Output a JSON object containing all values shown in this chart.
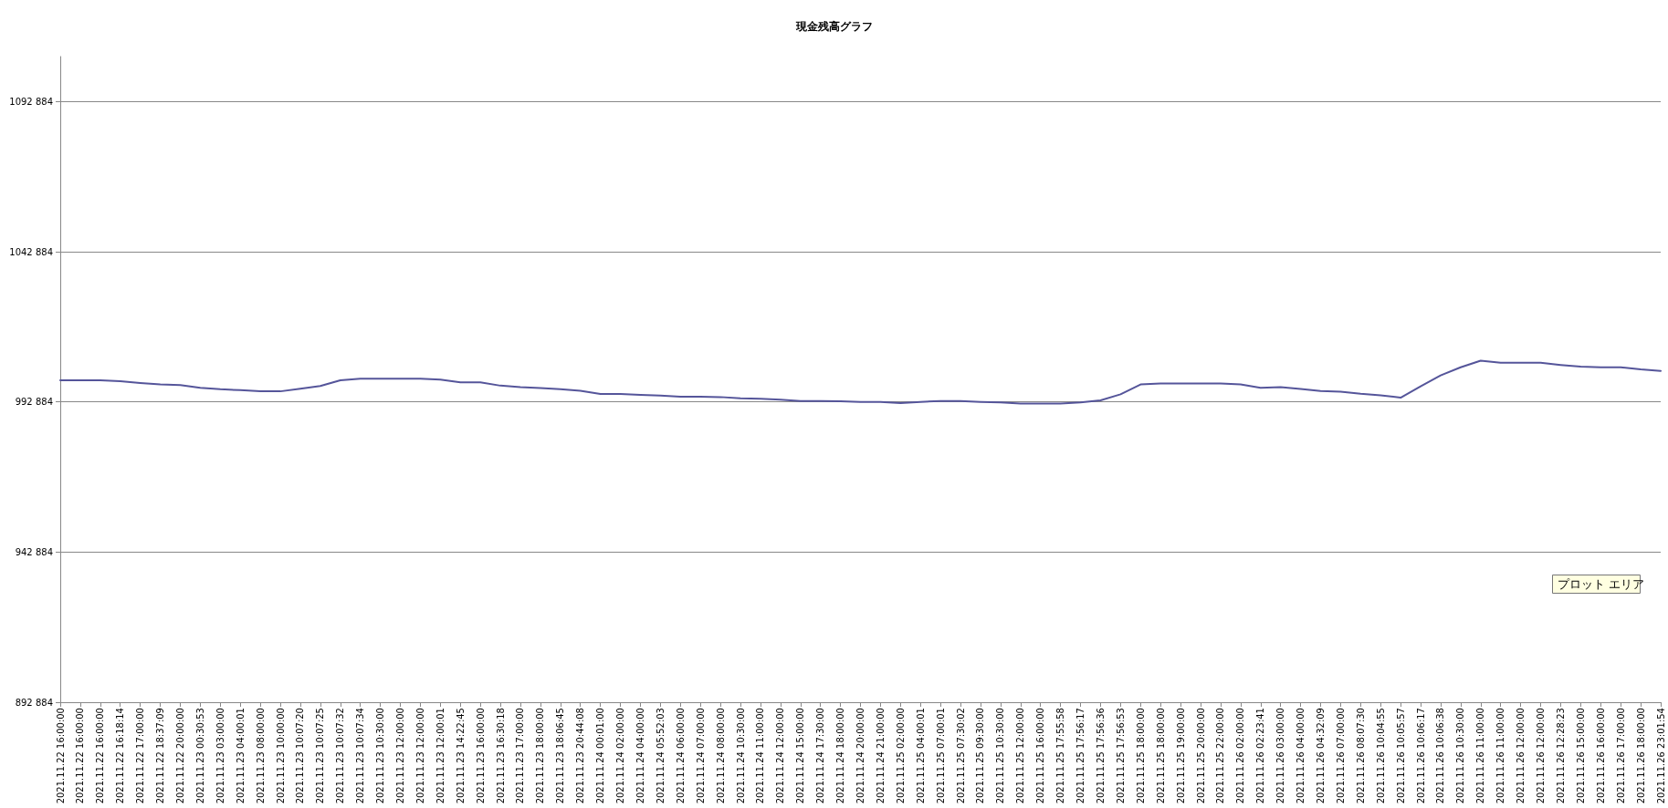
{
  "chart_data": {
    "type": "line",
    "title": "現金残高グラフ",
    "categories": [
      "2021.11.22 16:00:00",
      "2021.11.22 16:00:00",
      "2021.11.22 16:00:00",
      "2021.11.22 16:18:14",
      "2021.11.22 17:00:00",
      "2021.11.22 18:37:09",
      "2021.11.22 20:00:00",
      "2021.11.23 00:30:53",
      "2021.11.23 03:00:00",
      "2021.11.23 04:00:01",
      "2021.11.23 08:00:00",
      "2021.11.23 10:00:00",
      "2021.11.23 10:07:20",
      "2021.11.23 10:07:25",
      "2021.11.23 10:07:32",
      "2021.11.23 10:07:34",
      "2021.11.23 10:30:00",
      "2021.11.23 12:00:00",
      "2021.11.23 12:00:00",
      "2021.11.23 12:00:01",
      "2021.11.23 14:22:45",
      "2021.11.23 16:00:00",
      "2021.11.23 16:30:18",
      "2021.11.23 17:00:00",
      "2021.11.23 18:00:00",
      "2021.11.23 18:06:45",
      "2021.11.23 20:44:08",
      "2021.11.24 00:01:00",
      "2021.11.24 02:00:00",
      "2021.11.24 04:00:00",
      "2021.11.24 05:52:03",
      "2021.11.24 06:00:00",
      "2021.11.24 07:00:00",
      "2021.11.24 08:00:00",
      "2021.11.24 10:30:00",
      "2021.11.24 11:00:00",
      "2021.11.24 12:00:00",
      "2021.11.24 15:00:00",
      "2021.11.24 17:30:00",
      "2021.11.24 18:00:00",
      "2021.11.24 20:00:00",
      "2021.11.24 21:00:00",
      "2021.11.25 02:00:00",
      "2021.11.25 04:00:01",
      "2021.11.25 07:00:01",
      "2021.11.25 07:30:02",
      "2021.11.25 09:30:00",
      "2021.11.25 10:30:00",
      "2021.11.25 12:00:00",
      "2021.11.25 16:00:00",
      "2021.11.25 17:55:58",
      "2021.11.25 17:56:17",
      "2021.11.25 17:56:36",
      "2021.11.25 17:56:53",
      "2021.11.25 18:00:00",
      "2021.11.25 18:00:00",
      "2021.11.25 19:00:00",
      "2021.11.25 20:00:00",
      "2021.11.25 22:00:00",
      "2021.11.26 02:00:00",
      "2021.11.26 02:23:41",
      "2021.11.26 03:00:00",
      "2021.11.26 04:00:00",
      "2021.11.26 04:32:09",
      "2021.11.26 07:00:00",
      "2021.11.26 08:07:30",
      "2021.11.26 10:04:55",
      "2021.11.26 10:05:57",
      "2021.11.26 10:06:17",
      "2021.11.26 10:06:38",
      "2021.11.26 10:30:00",
      "2021.11.26 11:00:00",
      "2021.11.26 11:00:00",
      "2021.11.26 12:00:00",
      "2021.11.26 12:00:00",
      "2021.11.26 12:28:23",
      "2021.11.26 15:00:00",
      "2021.11.26 16:00:00",
      "2021.11.26 17:00:00",
      "2021.11.26 18:00:00",
      "2021.11.26 23:01:54"
    ],
    "series": [
      {
        "color": "#55559a",
        "values": [
          1000100,
          1000100,
          1000100,
          999800,
          999200,
          998700,
          998500,
          997600,
          997100,
          996800,
          996400,
          996400,
          997300,
          998200,
          1000100,
          1000600,
          1000600,
          1000600,
          1000600,
          1000300,
          999400,
          999400,
          998300,
          997800,
          997500,
          997100,
          996600,
          995500,
          995500,
          995200,
          995000,
          994600,
          994600,
          994500,
          994100,
          993900,
          993600,
          993200,
          993200,
          993100,
          992900,
          992900,
          992500,
          992900,
          993200,
          993200,
          992900,
          992700,
          992300,
          992300,
          992300,
          992700,
          993400,
          995400,
          998700,
          999000,
          999000,
          999000,
          999000,
          998700,
          997600,
          997800,
          997200,
          996500,
          996300,
          995600,
          995100,
          994300,
          998100,
          1001700,
          1004400,
          1006600,
          1005900,
          1005900,
          1005900,
          1005200,
          1004600,
          1004400,
          1004400,
          1003700,
          1003200
        ]
      }
    ],
    "ylim": [
      892884,
      1107884
    ],
    "yticks": [
      {
        "value": 892884,
        "label": "892 884"
      },
      {
        "value": 942884,
        "label": "942 884"
      },
      {
        "value": 992884,
        "label": "992 884"
      },
      {
        "value": 1042884,
        "label": "1042 884"
      },
      {
        "value": 1092884,
        "label": "1092 884"
      }
    ],
    "grid": "y",
    "marker": "none",
    "line_style": "solid",
    "annotations": [
      "プロット エリア"
    ]
  }
}
